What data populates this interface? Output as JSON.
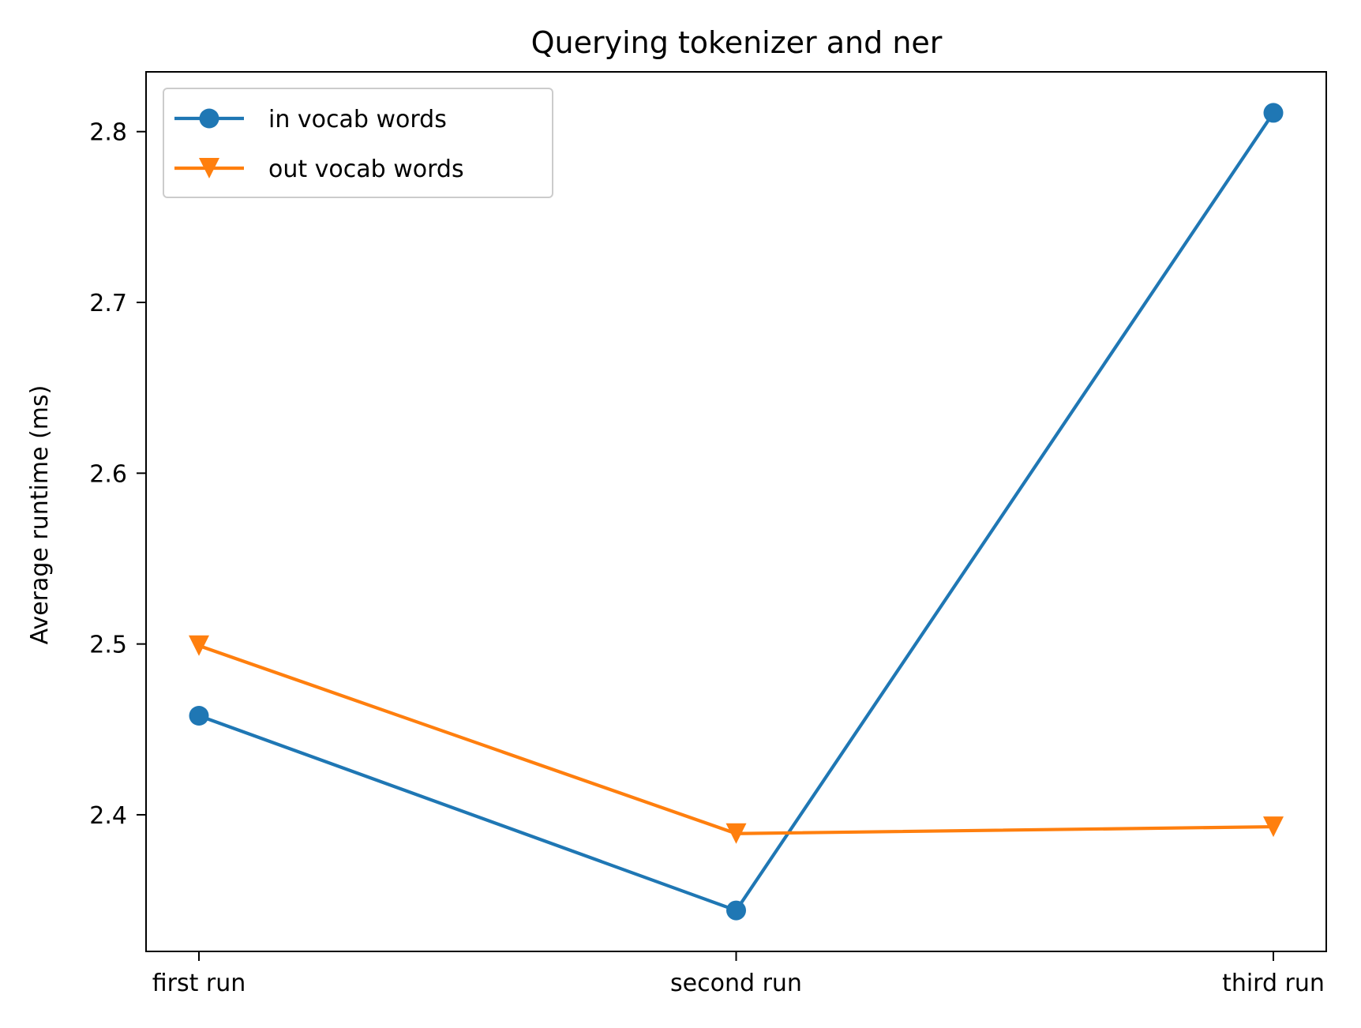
{
  "chart_data": {
    "type": "line",
    "title": "Querying tokenizer and ner",
    "xlabel": "",
    "ylabel": "Average runtime (ms)",
    "categories": [
      "first run",
      "second run",
      "third run"
    ],
    "ylim": [
      2.32,
      2.835
    ],
    "yticks": [
      2.4,
      2.5,
      2.6,
      2.7,
      2.8
    ],
    "ytick_labels": [
      "2.4",
      "2.5",
      "2.6",
      "2.7",
      "2.8"
    ],
    "grid": false,
    "legend_position": "upper-left",
    "series": [
      {
        "name": "in vocab words",
        "values": [
          2.458,
          2.344,
          2.811
        ],
        "color": "#1f77b4",
        "marker": "circle"
      },
      {
        "name": "out vocab words",
        "values": [
          2.499,
          2.389,
          2.393
        ],
        "color": "#ff7f0e",
        "marker": "triangle-down"
      }
    ]
  }
}
